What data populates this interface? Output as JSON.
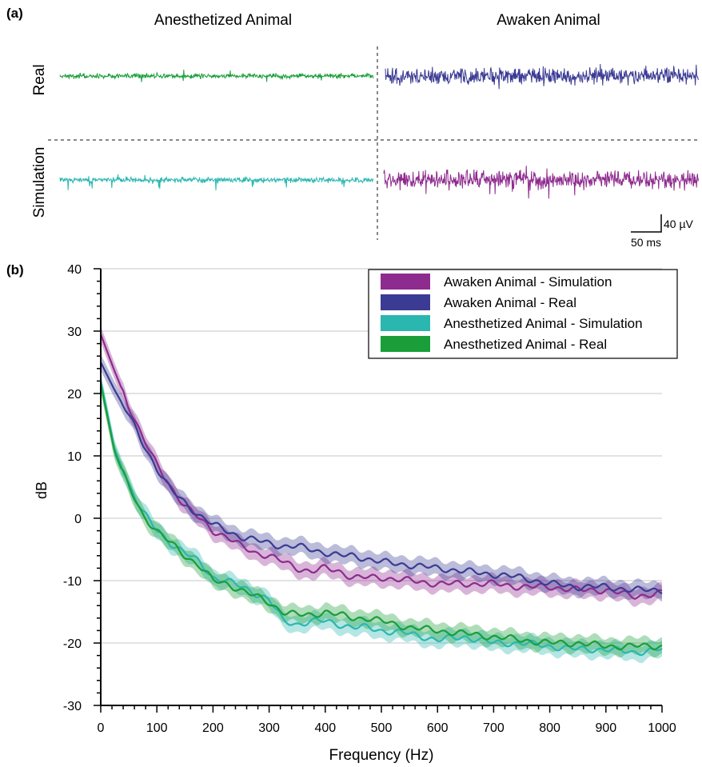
{
  "panel_a": {
    "label": "(a)",
    "col_left_title": "Anesthetized Animal",
    "col_right_title": "Awaken Animal",
    "row_top_label": "Real",
    "row_bottom_label": "Simulation",
    "scale_y_label": "40 µV",
    "scale_x_label": "50 ms",
    "colors": {
      "anesthetized_real": "#1a9e3a",
      "awaken_real": "#3b3b94",
      "anesthetized_sim": "#2ab7b0",
      "awaken_sim": "#8e2b8e"
    }
  },
  "panel_b": {
    "label": "(b)"
  },
  "chart_data": {
    "type": "line",
    "title": "",
    "xlabel": "Frequency (Hz)",
    "ylabel": "dB",
    "xlim": [
      0,
      1000
    ],
    "ylim": [
      -30,
      40
    ],
    "xticks": [
      0,
      100,
      200,
      300,
      400,
      500,
      600,
      700,
      800,
      900,
      1000
    ],
    "yticks": [
      -30,
      -20,
      -10,
      0,
      10,
      20,
      30,
      40
    ],
    "grid": "horizontal",
    "legend_position": "top-right",
    "series": [
      {
        "name": "Awaken Animal - Simulation",
        "color": "#8e2b8e",
        "x": [
          0,
          25,
          50,
          75,
          100,
          125,
          150,
          175,
          200,
          225,
          250,
          275,
          300,
          325,
          350,
          375,
          400,
          425,
          450,
          475,
          500,
          550,
          600,
          650,
          700,
          750,
          800,
          850,
          900,
          950,
          1000
        ],
        "y": [
          29.5,
          23.5,
          18.0,
          13.0,
          8.5,
          5.0,
          2.0,
          0.0,
          -2.0,
          -3.0,
          -4.5,
          -5.5,
          -6.0,
          -7.0,
          -8.0,
          -8.5,
          -8.0,
          -8.5,
          -9.5,
          -9.5,
          -9.5,
          -10.0,
          -10.5,
          -10.5,
          -10.5,
          -11.0,
          -11.0,
          -11.5,
          -11.5,
          -12.5,
          -12.0
        ]
      },
      {
        "name": "Awaken Animal - Real",
        "color": "#3b3b94",
        "x": [
          0,
          25,
          50,
          75,
          100,
          125,
          150,
          175,
          200,
          225,
          250,
          275,
          300,
          325,
          350,
          375,
          400,
          425,
          450,
          475,
          500,
          550,
          600,
          650,
          700,
          750,
          800,
          850,
          900,
          950,
          1000
        ],
        "y": [
          25.0,
          20.5,
          16.5,
          12.0,
          8.0,
          4.5,
          2.5,
          0.5,
          -1.0,
          -2.0,
          -3.0,
          -3.5,
          -4.0,
          -4.5,
          -4.5,
          -5.0,
          -5.5,
          -6.0,
          -6.0,
          -6.5,
          -7.0,
          -7.5,
          -8.0,
          -8.5,
          -9.0,
          -9.5,
          -10.5,
          -11.0,
          -11.0,
          -11.5,
          -11.5
        ]
      },
      {
        "name": "Anesthetized Animal - Simulation",
        "color": "#2ab7b0",
        "x": [
          0,
          25,
          50,
          75,
          100,
          125,
          150,
          175,
          200,
          225,
          250,
          275,
          300,
          325,
          350,
          375,
          400,
          425,
          450,
          475,
          500,
          550,
          600,
          650,
          700,
          750,
          800,
          850,
          900,
          950,
          1000
        ],
        "y": [
          22.0,
          11.0,
          5.5,
          1.0,
          -2.0,
          -4.0,
          -5.5,
          -7.0,
          -9.5,
          -10.0,
          -11.0,
          -12.0,
          -13.0,
          -16.5,
          -17.0,
          -16.5,
          -16.5,
          -17.0,
          -17.5,
          -17.5,
          -18.0,
          -18.5,
          -19.5,
          -19.0,
          -20.0,
          -20.0,
          -20.5,
          -21.0,
          -21.0,
          -21.5,
          -21.0
        ]
      },
      {
        "name": "Anesthetized Animal - Real",
        "color": "#1a9e3a",
        "x": [
          0,
          25,
          50,
          75,
          100,
          125,
          150,
          175,
          200,
          225,
          250,
          275,
          300,
          325,
          350,
          375,
          400,
          425,
          450,
          475,
          500,
          550,
          600,
          650,
          700,
          750,
          800,
          850,
          900,
          950,
          1000
        ],
        "y": [
          21.5,
          10.5,
          5.0,
          0.5,
          -2.0,
          -4.0,
          -6.0,
          -7.5,
          -10.0,
          -10.5,
          -11.5,
          -12.5,
          -13.5,
          -15.0,
          -15.5,
          -15.5,
          -15.0,
          -15.5,
          -16.0,
          -16.0,
          -16.5,
          -17.5,
          -18.0,
          -18.5,
          -19.0,
          -19.5,
          -20.0,
          -20.0,
          -20.5,
          -20.5,
          -20.5
        ]
      }
    ]
  }
}
